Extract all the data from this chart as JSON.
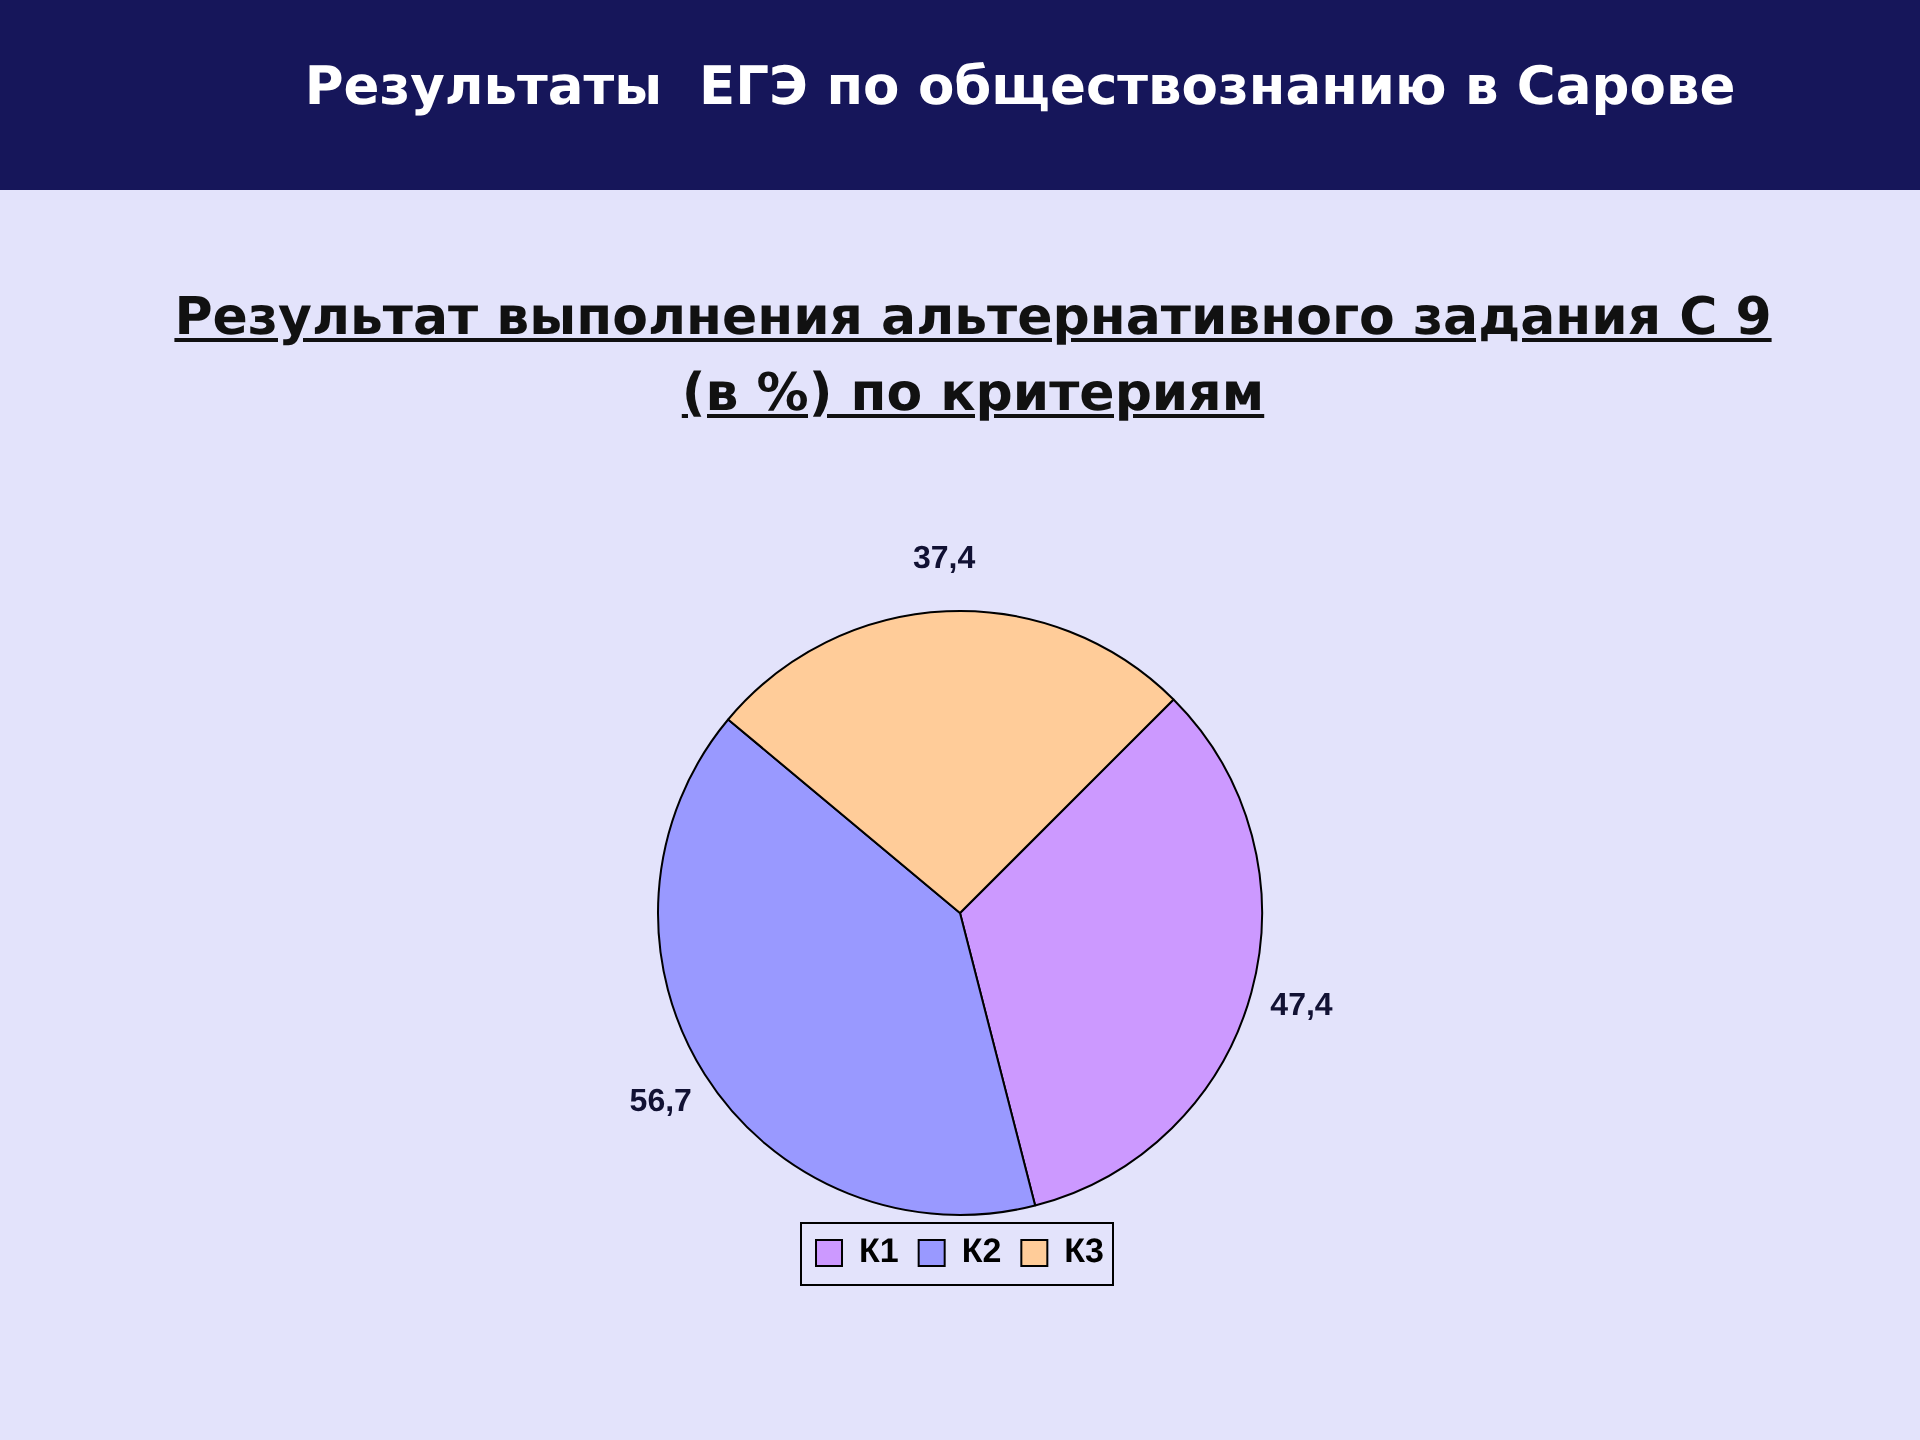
{
  "chart_data": {
    "type": "pie",
    "title": "Результаты  ЕГЭ по обществознанию в Сарове",
    "subtitle": "Результат выполнения альтернативного задания С 9 (в %) по критериям",
    "categories": [
      "К1",
      "К2",
      "К3"
    ],
    "values": [
      47.4,
      56.7,
      37.4
    ],
    "colors": [
      "#cc99ff",
      "#9999ff",
      "#ffcc99"
    ],
    "value_labels": [
      "47,4",
      "56,7",
      "37,4"
    ],
    "legend": "bottom"
  }
}
